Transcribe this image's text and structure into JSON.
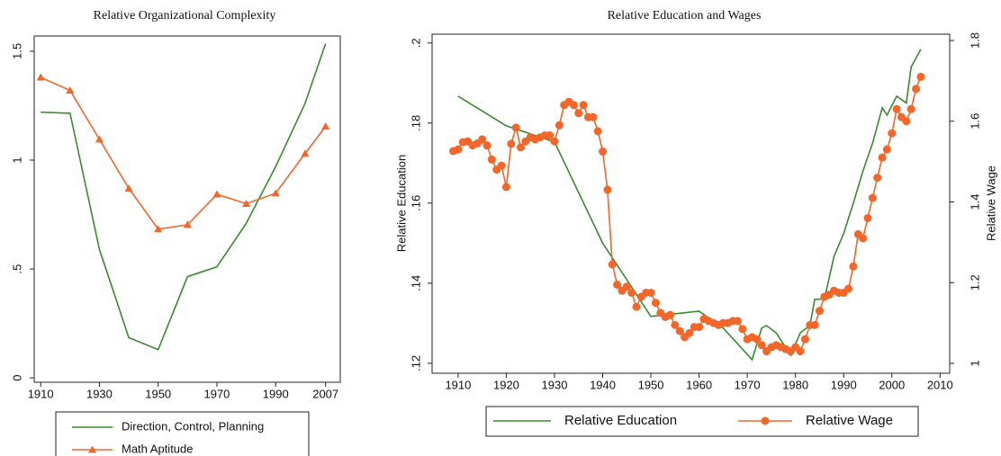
{
  "chart_data": [
    {
      "type": "line",
      "title": "Relative Organizational Complexity",
      "xlim": [
        1907.8,
        2012
      ],
      "xticks": [
        1910,
        1930,
        1950,
        1970,
        1990,
        2007
      ],
      "ylim": [
        -0.02,
        1.57
      ],
      "yticks": [
        0,
        {
          "value": 0.5,
          "label": ".5"
        },
        1,
        1.5
      ],
      "series": [
        {
          "name": "Direction, Control, Planning",
          "color": "#3a8a2e",
          "x": [
            1910,
            1920,
            1930,
            1940,
            1950,
            1960,
            1970,
            1980,
            1990,
            2000,
            2007
          ],
          "values": [
            1.22,
            1.215,
            0.59,
            0.185,
            0.13,
            0.465,
            0.51,
            0.71,
            0.97,
            1.26,
            1.535
          ]
        },
        {
          "name": "Math Aptitude",
          "color": "#f2662a",
          "marker": "triangle",
          "x": [
            1910,
            1920,
            1930,
            1940,
            1950,
            1960,
            1970,
            1980,
            1990,
            2000,
            2007
          ],
          "values": [
            1.38,
            1.32,
            1.095,
            0.87,
            0.683,
            0.703,
            0.843,
            0.8,
            0.848,
            1.03,
            1.155
          ]
        }
      ]
    },
    {
      "type": "line",
      "title": "Relative Education and Wages",
      "y_label": "Relative Education",
      "y2_label": "Relative Wage",
      "xlim": [
        1904.6,
        2012
      ],
      "xticks": [
        1910,
        1920,
        1930,
        1940,
        1950,
        1960,
        1970,
        1980,
        1990,
        2000,
        2010
      ],
      "ylim": [
        0.1175,
        0.2022
      ],
      "yticks": [
        {
          "value": 0.12,
          "label": ".12"
        },
        {
          "value": 0.14,
          "label": ".14"
        },
        {
          "value": 0.16,
          "label": ".16"
        },
        {
          "value": 0.18,
          "label": ".18"
        },
        {
          "value": 0.2,
          "label": ".2"
        }
      ],
      "y2lim": [
        0.9755,
        1.8156
      ],
      "y2ticks": [
        1,
        1.2,
        1.4,
        1.6,
        1.8
      ],
      "series": [
        {
          "name": "Relative Education",
          "color": "#3a8a2e",
          "x": [
            1910,
            1920,
            1930,
            1940,
            1950,
            1960,
            1965,
            1971,
            1973,
            1974,
            1976,
            1979,
            1981,
            1983,
            1984,
            1986,
            1988,
            1990,
            1992,
            1994,
            1996,
            1998,
            1999,
            2001,
            2003,
            2004,
            2006
          ],
          "values": [
            0.1867,
            0.1793,
            0.1753,
            0.15,
            0.1317,
            0.133,
            0.1288,
            0.1209,
            0.1288,
            0.1294,
            0.1276,
            0.122,
            0.1276,
            0.1294,
            0.136,
            0.136,
            0.1467,
            0.1524,
            0.16,
            0.168,
            0.175,
            0.1838,
            0.182,
            0.1867,
            0.185,
            0.194,
            0.1984
          ]
        },
        {
          "name": "Relative Wage",
          "color": "#f2662a",
          "marker": "circle",
          "axis": "y2",
          "x": [
            1909,
            1910,
            1911,
            1912,
            1913,
            1914,
            1915,
            1916,
            1917,
            1918,
            1919,
            1920,
            1921,
            1922,
            1923,
            1924,
            1925,
            1926,
            1927,
            1928,
            1929,
            1930,
            1931,
            1932,
            1933,
            1934,
            1935,
            1936,
            1937,
            1938,
            1939,
            1940,
            1941,
            1942,
            1943,
            1944,
            1945,
            1946,
            1947,
            1948,
            1949,
            1950,
            1951,
            1952,
            1953,
            1954,
            1955,
            1956,
            1957,
            1958,
            1959,
            1960,
            1961,
            1962,
            1963,
            1964,
            1965,
            1966,
            1967,
            1968,
            1969,
            1970,
            1971,
            1972,
            1973,
            1974,
            1975,
            1976,
            1977,
            1978,
            1979,
            1980,
            1981,
            1982,
            1983,
            1984,
            1985,
            1986,
            1987,
            1988,
            1989,
            1990,
            1991,
            1992,
            1993,
            1994,
            1995,
            1996,
            1997,
            1998,
            1999,
            2000,
            2001,
            2002,
            2003,
            2004,
            2005,
            2006
          ],
          "values": [
            1.526,
            1.53,
            1.548,
            1.55,
            1.54,
            1.545,
            1.555,
            1.54,
            1.505,
            1.48,
            1.49,
            1.437,
            1.544,
            1.584,
            1.535,
            1.55,
            1.56,
            1.555,
            1.56,
            1.565,
            1.565,
            1.55,
            1.59,
            1.64,
            1.648,
            1.64,
            1.62,
            1.64,
            1.61,
            1.61,
            1.575,
            1.525,
            1.43,
            1.245,
            1.195,
            1.18,
            1.19,
            1.175,
            1.14,
            1.165,
            1.175,
            1.175,
            1.15,
            1.125,
            1.115,
            1.12,
            1.095,
            1.08,
            1.065,
            1.075,
            1.09,
            1.09,
            1.11,
            1.105,
            1.1,
            1.095,
            1.1,
            1.1,
            1.105,
            1.105,
            1.085,
            1.06,
            1.065,
            1.06,
            1.045,
            1.03,
            1.04,
            1.045,
            1.04,
            1.035,
            1.03,
            1.04,
            1.03,
            1.06,
            1.095,
            1.095,
            1.13,
            1.165,
            1.17,
            1.18,
            1.175,
            1.175,
            1.185,
            1.24,
            1.32,
            1.31,
            1.36,
            1.41,
            1.46,
            1.51,
            1.53,
            1.57,
            1.63,
            1.61,
            1.6,
            1.63,
            1.68,
            1.71
          ]
        }
      ]
    }
  ]
}
